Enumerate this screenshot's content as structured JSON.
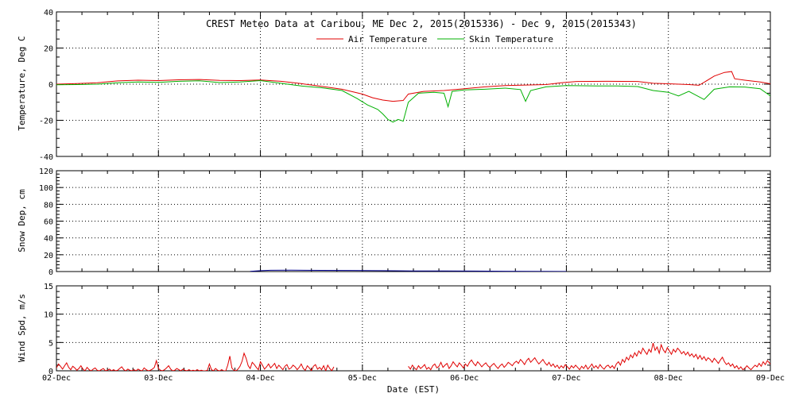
{
  "chart_data": [
    {
      "type": "line",
      "title": "CREST Meteo Data at Caribou, ME   Dec  2, 2015(2015336) - Dec  9, 2015(2015343)",
      "ylabel": "Temperature, Deg C",
      "ylim": [
        -40,
        40
      ],
      "yticks": [
        "-40",
        "-20",
        "0",
        "20",
        "40"
      ],
      "grid": true,
      "legend": "top-center",
      "series": [
        {
          "name": "Air Temperature",
          "color": "#e00000",
          "points": [
            [
              0.0,
              0.0
            ],
            [
              0.2,
              0.3
            ],
            [
              0.4,
              0.8
            ],
            [
              0.6,
              1.8
            ],
            [
              0.8,
              2.2
            ],
            [
              1.0,
              2.0
            ],
            [
              1.2,
              2.4
            ],
            [
              1.4,
              2.6
            ],
            [
              1.6,
              2.1
            ],
            [
              1.8,
              2.0
            ],
            [
              2.0,
              2.3
            ],
            [
              2.2,
              1.6
            ],
            [
              2.4,
              0.3
            ],
            [
              2.6,
              -1.2
            ],
            [
              2.8,
              -2.8
            ],
            [
              3.0,
              -5.5
            ],
            [
              3.1,
              -7.5
            ],
            [
              3.2,
              -8.8
            ],
            [
              3.3,
              -9.5
            ],
            [
              3.4,
              -9.0
            ],
            [
              3.45,
              -5.5
            ],
            [
              3.6,
              -4.0
            ],
            [
              3.8,
              -3.5
            ],
            [
              4.0,
              -2.5
            ],
            [
              4.2,
              -1.5
            ],
            [
              4.4,
              -0.8
            ],
            [
              4.6,
              -0.5
            ],
            [
              4.8,
              -0.2
            ],
            [
              4.95,
              0.8
            ],
            [
              5.1,
              1.5
            ],
            [
              5.4,
              1.6
            ],
            [
              5.7,
              1.5
            ],
            [
              5.85,
              0.5
            ],
            [
              6.0,
              0.2
            ],
            [
              6.2,
              -0.2
            ],
            [
              6.3,
              -0.6
            ],
            [
              6.35,
              1.0
            ],
            [
              6.45,
              4.5
            ],
            [
              6.55,
              6.5
            ],
            [
              6.62,
              7.0
            ],
            [
              6.65,
              3.0
            ],
            [
              6.75,
              2.2
            ],
            [
              6.9,
              1.2
            ],
            [
              7.0,
              0.2
            ],
            [
              7.2,
              -0.8
            ],
            [
              7.3,
              -1.0
            ],
            [
              7.4,
              2.0
            ],
            [
              7.5,
              4.5
            ],
            [
              7.55,
              4.8
            ],
            [
              7.7,
              3.5
            ],
            [
              7.8,
              2.0
            ],
            [
              7.9,
              0.5
            ],
            [
              8.0,
              -0.8
            ],
            [
              8.1,
              -2.2
            ],
            [
              8.25,
              -5.0
            ],
            [
              8.4,
              -6.5
            ],
            [
              8.5,
              -1.0
            ],
            [
              8.6,
              1.5
            ],
            [
              8.7,
              1.6
            ],
            [
              8.8,
              0.5
            ],
            [
              8.9,
              -2.0
            ],
            [
              9.0,
              -3.8
            ],
            [
              9.1,
              -4.8
            ],
            [
              9.2,
              -5.2
            ],
            [
              9.3,
              -4.6
            ]
          ]
        },
        {
          "name": "Skin Temperature",
          "color": "#00b000",
          "points": [
            [
              0.0,
              -0.3
            ],
            [
              0.2,
              -0.2
            ],
            [
              0.4,
              0.0
            ],
            [
              0.6,
              0.8
            ],
            [
              0.8,
              1.2
            ],
            [
              1.0,
              1.0
            ],
            [
              1.2,
              1.6
            ],
            [
              1.4,
              1.9
            ],
            [
              1.6,
              0.9
            ],
            [
              1.8,
              1.2
            ],
            [
              2.0,
              2.0
            ],
            [
              2.2,
              0.5
            ],
            [
              2.4,
              -1.0
            ],
            [
              2.6,
              -2.0
            ],
            [
              2.8,
              -3.5
            ],
            [
              2.95,
              -8.0
            ],
            [
              3.05,
              -11.5
            ],
            [
              3.15,
              -14.0
            ],
            [
              3.2,
              -16.5
            ],
            [
              3.25,
              -19.5
            ],
            [
              3.3,
              -21.0
            ],
            [
              3.35,
              -19.5
            ],
            [
              3.4,
              -20.5
            ],
            [
              3.45,
              -10.0
            ],
            [
              3.55,
              -5.0
            ],
            [
              3.7,
              -4.5
            ],
            [
              3.8,
              -5.0
            ],
            [
              3.84,
              -12.5
            ],
            [
              3.88,
              -4.0
            ],
            [
              4.0,
              -3.2
            ],
            [
              4.2,
              -2.8
            ],
            [
              4.4,
              -2.2
            ],
            [
              4.55,
              -3.0
            ],
            [
              4.6,
              -9.5
            ],
            [
              4.65,
              -3.5
            ],
            [
              4.8,
              -1.5
            ],
            [
              5.0,
              -0.8
            ],
            [
              5.3,
              -1.0
            ],
            [
              5.5,
              -1.0
            ],
            [
              5.7,
              -1.3
            ],
            [
              5.85,
              -3.5
            ],
            [
              6.0,
              -4.5
            ],
            [
              6.1,
              -6.5
            ],
            [
              6.2,
              -4.0
            ],
            [
              6.35,
              -8.5
            ],
            [
              6.45,
              -2.8
            ],
            [
              6.6,
              -1.5
            ],
            [
              6.75,
              -1.6
            ],
            [
              6.9,
              -2.5
            ],
            [
              7.0,
              -6.5
            ],
            [
              7.2,
              -7.0
            ],
            [
              7.35,
              -1.0
            ],
            [
              7.5,
              3.0
            ],
            [
              7.7,
              2.0
            ],
            [
              7.9,
              -1.0
            ],
            [
              8.0,
              -3.5
            ],
            [
              8.2,
              -7.0
            ],
            [
              8.35,
              -10.5
            ],
            [
              8.45,
              -6.0
            ],
            [
              8.55,
              -1.0
            ],
            [
              8.7,
              2.8
            ],
            [
              8.8,
              1.0
            ],
            [
              8.9,
              -4.0
            ],
            [
              9.0,
              -7.0
            ],
            [
              9.15,
              -9.0
            ],
            [
              9.25,
              -7.0
            ],
            [
              9.3,
              -5.0
            ]
          ]
        }
      ]
    },
    {
      "type": "line",
      "ylabel": "Snow Dep, cm",
      "ylim": [
        0,
        120
      ],
      "yticks": [
        "0",
        "20",
        "40",
        "60",
        "80",
        "100",
        "120"
      ],
      "grid": true,
      "series": [
        {
          "color": "#000090",
          "points": [
            [
              1.9,
              0.2
            ],
            [
              2.0,
              1.0
            ],
            [
              2.1,
              1.5
            ],
            [
              2.3,
              1.6
            ],
            [
              2.6,
              1.4
            ],
            [
              2.9,
              1.3
            ],
            [
              3.2,
              1.0
            ],
            [
              3.5,
              0.8
            ],
            [
              3.8,
              0.7
            ],
            [
              4.1,
              0.6
            ],
            [
              4.4,
              0.4
            ],
            [
              4.7,
              0.3
            ],
            [
              5.0,
              0.1
            ]
          ]
        }
      ]
    },
    {
      "type": "line",
      "ylabel": "Wind Spd, m/s",
      "xlabel": "Date (EST)",
      "ylim": [
        0,
        15
      ],
      "yticks": [
        "0",
        "5",
        "10",
        "15"
      ],
      "x_ticks": [
        "02-Dec",
        "03-Dec",
        "04-Dec",
        "05-Dec",
        "06-Dec",
        "07-Dec",
        "08-Dec",
        "09-Dec"
      ],
      "grid": true,
      "series": [
        {
          "color": "#e00000",
          "segments": [
            {
              "x_start": 0.0,
              "x_step": 0.02,
              "values": [
                0.5,
                1.2,
                0.8,
                0.3,
                0.9,
                1.4,
                0.6,
                0.2,
                0.8,
                0.5,
                0.1,
                0.4,
                0.9,
                0.3,
                0.0,
                0.6,
                0.2,
                0.0,
                0.3,
                0.5,
                0.1,
                0.0,
                0.2,
                0.4,
                0.0,
                0.1,
                0.3,
                0.0,
                0.2,
                0.0,
                0.1,
                0.4,
                0.7,
                0.2,
                0.0,
                0.3,
                0.1,
                0.0,
                0.2,
                0.0,
                0.3,
                0.1,
                0.0,
                0.5,
                0.2,
                0.0,
                0.1,
                0.3,
                0.6,
                1.8,
                0.4,
                0.1,
                0.0,
                0.2,
                0.5,
                0.9,
                0.3,
                0.0,
                0.1,
                0.4,
                0.2,
                0.0,
                0.3,
                0.1,
                0.0,
                0.2,
                0.0,
                0.1,
                0.0,
                0.2,
                0.0,
                0.1,
                0.0,
                0.0,
                0.1,
                1.2,
                0.2,
                0.0,
                0.4,
                0.1,
                0.0,
                0.2,
                0.0,
                0.0,
                1.0,
                2.6,
                0.5,
                0.1,
                0.0,
                0.3,
                0.8,
                1.7,
                3.1,
                2.2,
                0.9,
                0.4,
                1.5,
                1.1,
                0.6,
                0.2,
                1.6,
                1.0,
                0.3,
                0.7,
                1.2,
                0.5,
                0.9,
                1.3,
                0.4,
                1.0,
                0.6,
                0.2,
                0.8,
                1.1,
                0.3,
                0.5,
                1.0,
                0.7,
                0.2,
                0.6,
                1.2,
                0.4,
                0.1,
                0.9,
                0.5,
                0.0,
                0.8,
                1.1,
                0.3,
                0.6,
                0.2,
                0.9,
                0.0,
                1.0,
                0.4,
                0.0,
                0.7
              ]
            },
            {
              "x_start": 3.45,
              "x_step": 0.02,
              "values": [
                0.8,
                0.3,
                1.0,
                0.5,
                0.2,
                0.9,
                0.4,
                0.7,
                1.1,
                0.3,
                0.6,
                0.2,
                0.9,
                1.2,
                0.5,
                0.8,
                1.5,
                0.6,
                1.0,
                1.3,
                0.4,
                0.9,
                1.6,
                1.1,
                0.7,
                1.4,
                1.0,
                0.5,
                1.2,
                0.8,
                1.5,
                1.9,
                1.3,
                0.9,
                1.6,
                1.2,
                0.7,
                1.1,
                1.4,
                0.9,
                0.6,
                1.0,
                1.3,
                0.8,
                0.4,
                0.9,
                1.2,
                0.6,
                1.0,
                1.5,
                1.2,
                0.9,
                1.4,
                1.7,
                1.3,
                2.0,
                1.6,
                1.1,
                1.8,
                2.2,
                1.5,
                1.9,
                2.3,
                1.7,
                1.2,
                1.6,
                2.0,
                1.4,
                1.0,
                1.5,
                0.8,
                1.2,
                0.6,
                1.0,
                0.4,
                0.9,
                0.5,
                1.1,
                0.7,
                0.3,
                0.9,
                0.5,
                1.0,
                0.6,
                0.2,
                0.8,
                0.4,
                1.0,
                0.3,
                0.7,
                1.2,
                0.5,
                0.9,
                0.4,
                1.1,
                0.6,
                0.3,
                0.8,
                1.0,
                0.5,
                0.9,
                0.4,
                1.2,
                1.6,
                1.0,
                2.0,
                1.5,
                2.4,
                1.9,
                2.8,
                2.3,
                3.2,
                2.6,
                3.5,
                3.0,
                4.0,
                3.4,
                2.9,
                3.8,
                3.3,
                4.9,
                3.6,
                4.2,
                3.1,
                4.6,
                3.7,
                3.2,
                4.1,
                3.5,
                2.9,
                3.8,
                3.3,
                4.0,
                3.6,
                3.0,
                3.4,
                2.8,
                3.3,
                2.6,
                3.0,
                2.4,
                2.9,
                2.1,
                2.7,
                2.0,
                2.5,
                1.8,
                2.3,
                2.0,
                1.5,
                2.2,
                1.8,
                1.3,
                1.9,
                2.4,
                1.6,
                1.1,
                1.4,
                0.8,
                1.2,
                0.5,
                0.9,
                0.3,
                0.7,
                0.2,
                0.4,
                0.9,
                0.5,
                0.2,
                0.6,
                1.0,
                0.7,
                1.3,
                0.8,
                1.6,
                1.1,
                1.8,
                1.4,
                1.0,
                1.6,
                1.2,
                0.7,
                1.1,
                0.5,
                0.9,
                0.4,
                0.8,
                0.2,
                0.5,
                0.9,
                0.3,
                0.6,
                0.1,
                0.4,
                0.8,
                0.3,
                0.0,
                0.5,
                0.2,
                0.7,
                0.3,
                0.9,
                0.4,
                0.1,
                0.6,
                1.4,
                0.2,
                0.0,
                0.5
              ]
            }
          ]
        }
      ]
    }
  ]
}
